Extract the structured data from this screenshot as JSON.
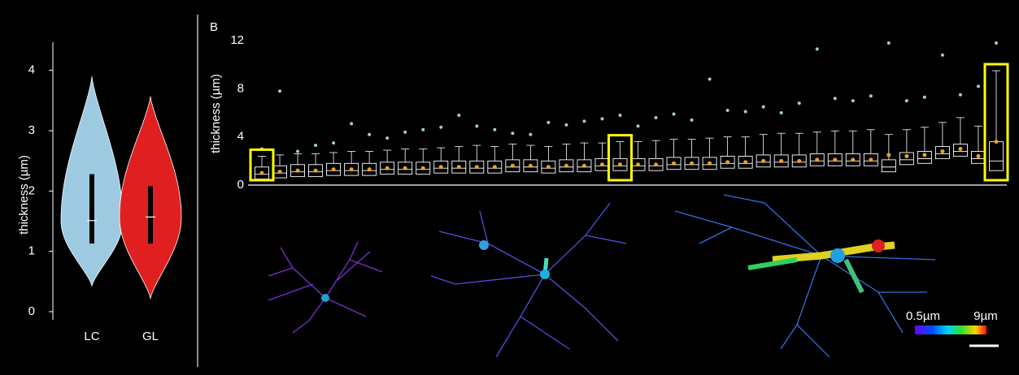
{
  "chart_data": [
    {
      "type": "violin",
      "ylabel": "thickness (µm)",
      "categories": [
        "LC",
        "GL"
      ],
      "series": [
        {
          "color": "#9ecae1",
          "min": 0.43,
          "q1": 1.13,
          "median": 1.51,
          "q3": 2.28,
          "max": 3.9
        },
        {
          "color": "#e02020",
          "min": 0.22,
          "q1": 1.13,
          "median": 1.57,
          "q3": 2.08,
          "max": 3.57
        }
      ],
      "ylim": [
        0,
        4.4
      ],
      "yticks": [
        0,
        1,
        2,
        3,
        4
      ]
    },
    {
      "type": "box",
      "panel_label": "B",
      "ylabel": "thickness (µm)",
      "categories": [
        null,
        null,
        null,
        null,
        null,
        null,
        null,
        null,
        null,
        null,
        null,
        null,
        null,
        null,
        null,
        null,
        null,
        null,
        null,
        null,
        null,
        null,
        null,
        null,
        null,
        null,
        null,
        null,
        null,
        null,
        null,
        null,
        null,
        null,
        null,
        null,
        null,
        null,
        null,
        null,
        null,
        null
      ],
      "q1": [
        0.5,
        0.6,
        0.7,
        0.7,
        0.8,
        0.8,
        0.8,
        0.9,
        0.9,
        0.9,
        1.0,
        1.0,
        1.0,
        1.0,
        1.1,
        1.1,
        1.0,
        1.1,
        1.1,
        1.2,
        1.2,
        1.2,
        1.2,
        1.3,
        1.3,
        1.3,
        1.4,
        1.4,
        1.5,
        1.5,
        1.5,
        1.6,
        1.6,
        1.6,
        1.6,
        1.1,
        1.7,
        1.8,
        2.2,
        2.4,
        1.8,
        1.2
      ],
      "median": [
        0.9,
        1.0,
        1.1,
        1.1,
        1.2,
        1.2,
        1.2,
        1.3,
        1.3,
        1.3,
        1.4,
        1.4,
        1.4,
        1.4,
        1.5,
        1.5,
        1.4,
        1.5,
        1.5,
        1.6,
        1.6,
        1.6,
        1.6,
        1.7,
        1.7,
        1.7,
        1.8,
        1.8,
        1.9,
        1.9,
        1.9,
        2.0,
        2.0,
        2.0,
        2.0,
        1.5,
        2.1,
        2.2,
        2.6,
        2.8,
        2.2,
        2.0
      ],
      "q3": [
        1.5,
        1.6,
        1.7,
        1.7,
        1.8,
        1.8,
        1.8,
        1.9,
        1.9,
        1.9,
        2.0,
        2.0,
        2.0,
        2.0,
        2.1,
        2.1,
        2.0,
        2.1,
        2.1,
        2.2,
        2.2,
        2.2,
        2.2,
        2.3,
        2.3,
        2.3,
        2.4,
        2.4,
        2.5,
        2.5,
        2.5,
        2.6,
        2.6,
        2.6,
        2.6,
        2.1,
        2.7,
        2.8,
        3.2,
        3.4,
        2.8,
        3.6
      ],
      "whisker_high": [
        2.4,
        2.5,
        2.6,
        2.6,
        2.7,
        2.8,
        2.8,
        2.9,
        3.0,
        3.0,
        3.1,
        3.2,
        3.3,
        3.2,
        3.4,
        3.3,
        3.2,
        3.4,
        3.5,
        3.5,
        3.6,
        3.6,
        3.7,
        3.8,
        3.8,
        3.9,
        4.0,
        4.0,
        4.2,
        4.3,
        4.3,
        4.4,
        4.5,
        4.5,
        4.6,
        4.2,
        4.6,
        4.8,
        5.2,
        5.6,
        4.9,
        9.5
      ],
      "mean": [
        1.0,
        1.1,
        1.2,
        1.2,
        1.3,
        1.3,
        1.3,
        1.4,
        1.4,
        1.4,
        1.5,
        1.5,
        1.5,
        1.5,
        1.6,
        1.6,
        1.5,
        1.6,
        1.6,
        1.7,
        1.7,
        1.7,
        1.7,
        1.8,
        1.8,
        1.8,
        1.9,
        1.9,
        2.0,
        2.0,
        2.0,
        2.1,
        2.1,
        2.1,
        2.1,
        2.5,
        2.4,
        2.5,
        2.8,
        3.0,
        2.4,
        3.6
      ],
      "max": [
        3.0,
        7.8,
        2.8,
        3.3,
        3.5,
        5.1,
        4.2,
        3.9,
        4.4,
        4.6,
        4.8,
        5.8,
        4.9,
        4.6,
        4.3,
        4.2,
        5.2,
        5.0,
        5.3,
        5.5,
        5.8,
        4.9,
        5.6,
        5.9,
        5.4,
        8.8,
        6.2,
        6.1,
        6.5,
        6.0,
        6.8,
        11.3,
        7.2,
        7.0,
        7.4,
        11.8,
        7.0,
        7.3,
        10.8,
        7.5,
        8.2,
        11.8
      ],
      "highlight": [
        0,
        20,
        41
      ],
      "box_color": "#ffffff",
      "mean_color": "#f0a020",
      "dot_color": "#9ecae1",
      "highlight_color": "#ffff00",
      "ylim": [
        0,
        12.5
      ],
      "yticks": [
        0,
        4,
        8,
        12
      ],
      "colorbar": {
        "min_label": "0.5µm",
        "max_label": "9µm"
      }
    }
  ]
}
